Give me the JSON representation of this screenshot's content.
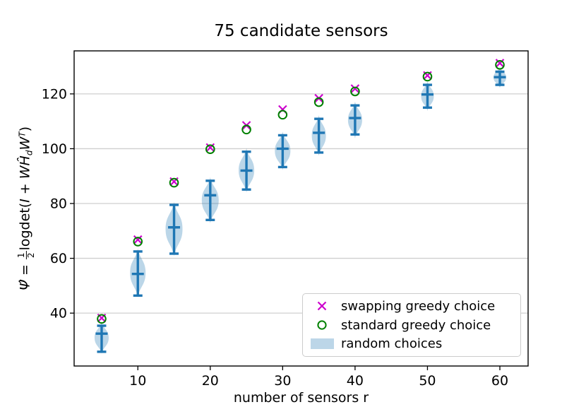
{
  "title": "75 candidate sensors",
  "xlabel": "number of sensors r",
  "ylabel": {
    "psi_hat": "Ψ̂",
    "equals": " = ",
    "frac_num": "1",
    "frac_den": "2",
    "logdet": "logdet(",
    "term_I": "I",
    "plus": " + ",
    "W1": "W",
    "H_hat": "Ĥ",
    "sub_d": "d",
    "W2": "W",
    "sup_T": "T",
    "close_paren": ")"
  },
  "legend": {
    "items": [
      {
        "icon": "x-marker-icon",
        "label": "swapping greedy choice",
        "color": "#cc00cc"
      },
      {
        "icon": "circle-marker-icon",
        "label": "standard greedy choice",
        "color": "#008000"
      },
      {
        "icon": "violin-patch-icon",
        "label": "random choices",
        "color": "#bcd6e8"
      }
    ],
    "position": "lower-right"
  },
  "colors": {
    "errorbar_blue": "#1f77b4",
    "violin_fill": "#1f77b4",
    "violin_fill_opacity": 0.3,
    "swap_magenta": "#cc00cc",
    "std_green": "#008000",
    "grid": "#cfcfcf",
    "axes": "#000000",
    "legend_border": "#cccccc"
  },
  "chart_data": {
    "type": "scatter+violin",
    "title": "75 candidate sensors",
    "xlabel": "number of sensors r",
    "ylabel": "Psi-hat = 1/2 logdet(I + W Hd-hat W^T)",
    "x": [
      5,
      10,
      15,
      20,
      25,
      30,
      35,
      40,
      50,
      60
    ],
    "series": [
      {
        "name": "swapping greedy choice",
        "type": "scatter",
        "marker": "x",
        "color": "#cc00cc",
        "values": [
          38.2,
          66.8,
          88.0,
          100.4,
          108.5,
          114.3,
          118.4,
          121.9,
          126.7,
          131.2
        ]
      },
      {
        "name": "standard greedy choice",
        "type": "scatter",
        "marker": "o",
        "color": "#008000",
        "values": [
          37.9,
          66.1,
          87.6,
          99.8,
          107.0,
          112.4,
          117.0,
          120.9,
          126.3,
          130.6
        ]
      },
      {
        "name": "random choices",
        "type": "violin",
        "color": "#1f77b4",
        "fill_opacity": 0.3,
        "median": [
          32.5,
          54.3,
          71.3,
          83.0,
          92.0,
          100.0,
          105.8,
          111.2,
          119.8,
          126.1
        ],
        "whisker_low": [
          25.9,
          46.4,
          61.7,
          74.0,
          85.1,
          93.3,
          98.6,
          105.2,
          115.0,
          123.3
        ],
        "whisker_high": [
          35.4,
          62.5,
          79.5,
          88.3,
          98.9,
          104.9,
          110.9,
          115.8,
          123.3,
          128.1
        ],
        "violin_low": [
          25.2,
          45.8,
          60.8,
          72.8,
          84.0,
          92.2,
          97.4,
          103.8,
          113.8,
          122.2
        ],
        "violin_high": [
          36.8,
          63.6,
          80.6,
          89.6,
          100.2,
          106.2,
          112.2,
          117.2,
          124.6,
          129.8
        ],
        "violin_halfwidth": [
          10,
          11,
          12,
          12,
          11,
          11,
          10,
          10,
          9,
          9
        ]
      }
    ],
    "xlim": [
      1.2,
      63.9
    ],
    "ylim": [
      20.7,
      135.7
    ],
    "xticks": [
      10,
      20,
      30,
      40,
      50,
      60
    ],
    "yticks": [
      40,
      60,
      80,
      100,
      120
    ],
    "grid": "horizontal-only",
    "legend_position": "lower-right"
  }
}
